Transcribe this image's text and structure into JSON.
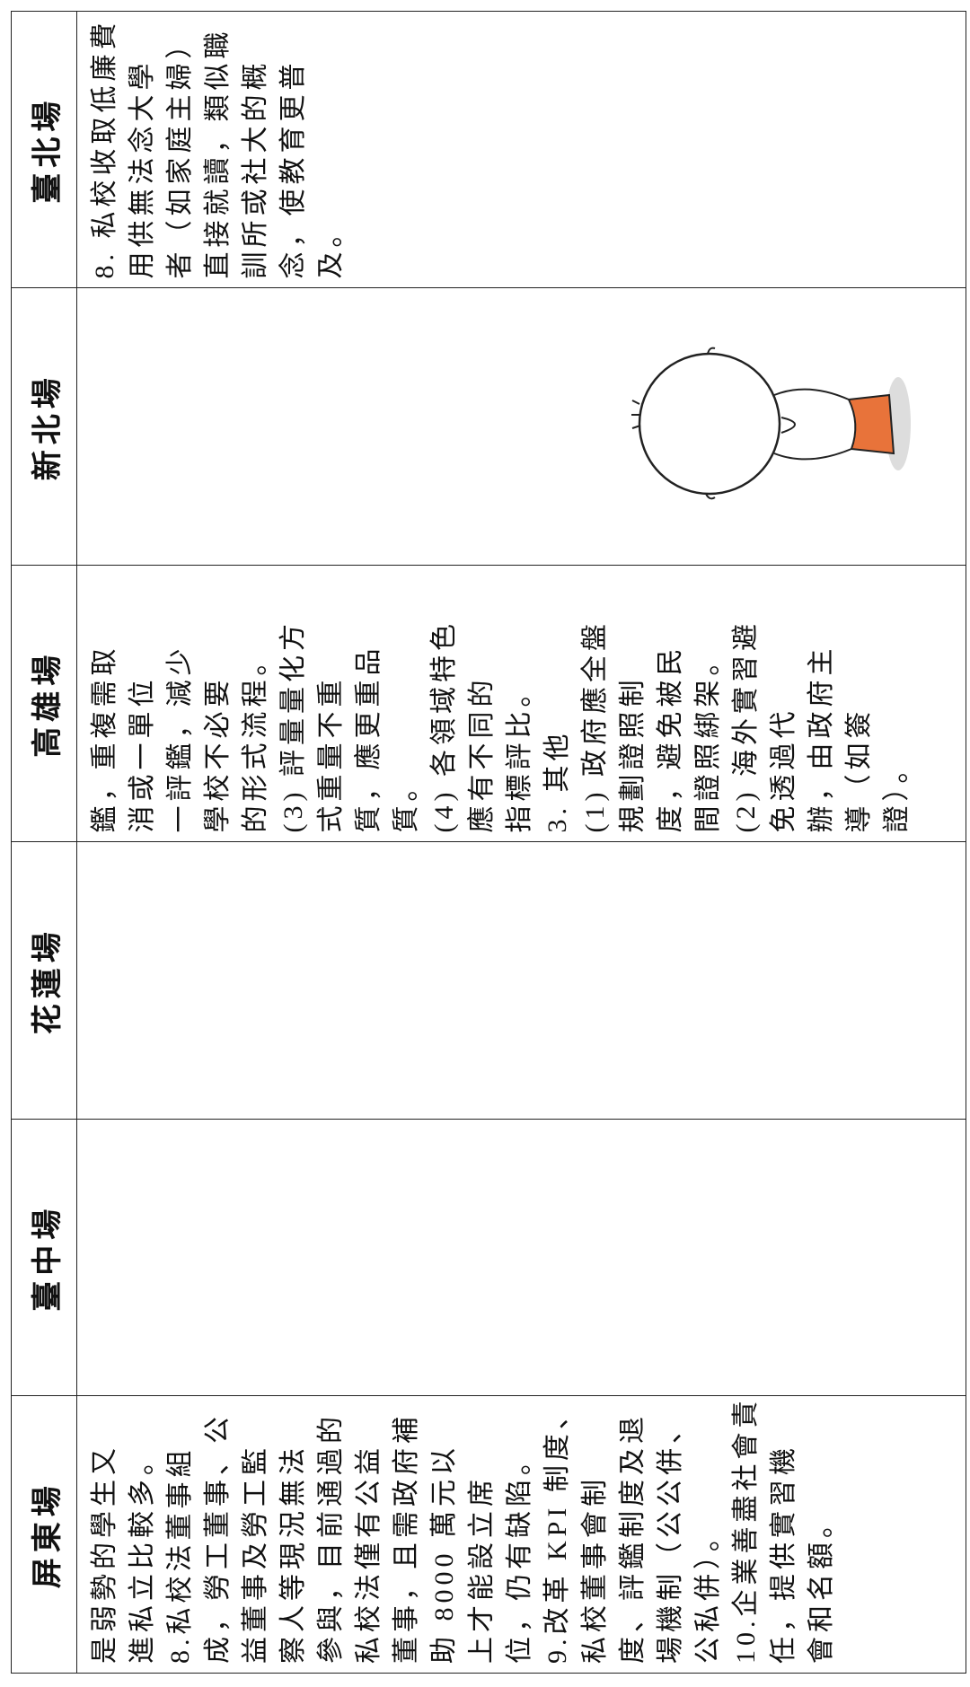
{
  "table": {
    "headers": [
      "屏東場",
      "臺中場",
      "花蓮場",
      "高雄場",
      "新北場",
      "臺北場"
    ],
    "cells": [
      [
        "是弱勢的學生又",
        "進私立比較多。",
        "8.私校法董事組",
        "成，勞工董事、公",
        "益董事及勞工監",
        "察人等現況無法",
        "參與，目前通過的",
        "私校法僅有公益",
        "董事，且需政府補",
        "助 8000 萬元以",
        "上才能設立席",
        "位，仍有缺陷。",
        "9.改革 KPI 制度、",
        "私校董事會制",
        "度、評鑑制度及退",
        "場機制（公公併、",
        "公私併）。",
        "10.企業善盡社會責",
        "任，提供實習機",
        "會和名額。"
      ],
      [],
      [],
      [
        "鑑，重複需取",
        "消或一單位",
        "一評鑑，減少",
        "學校不必要",
        "的形式流程。",
        "(3) 評量量化方",
        "式重量不重",
        "質，應更重品",
        "質。",
        "(4) 各領域特色",
        "應有不同的",
        "指標評比。",
        "3. 其他",
        "(1) 政府應全盤",
        "規劃證照制",
        "度，避免被民",
        "間證照綁架。",
        "(2) 海外實習避",
        "免透過代",
        "辦，由政府主",
        "導（如簽",
        "證）。"
      ],
      [],
      [
        "8. 私校收取低廉費",
        "用供無法念大學",
        "者（如家庭主婦）",
        "直接就讀，類似職",
        "訓所或社大的概",
        "念，使教育更普",
        "及。"
      ]
    ]
  }
}
